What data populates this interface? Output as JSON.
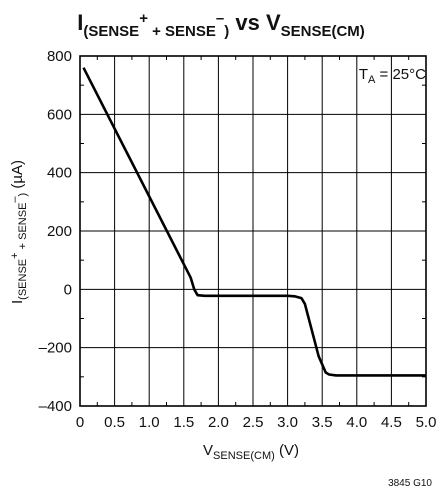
{
  "chart_data": {
    "type": "line",
    "title": {
      "main": "I",
      "sub1": "(SENSE",
      "sup1": "+",
      "sub2": " + SENSE",
      "sup2": "–",
      "sub3": ")",
      "vs": " vs V",
      "sub4": "SENSE(CM)"
    },
    "xlabel": {
      "main": "V",
      "sub": "SENSE(CM)",
      "unit": " (V)"
    },
    "ylabel": {
      "main": "I",
      "sub1": "(SENSE",
      "sup1": "+",
      "sub2": " + SENSE",
      "sup2": "–",
      "sub3": ")",
      "unit": " (µA)"
    },
    "xlim": [
      0,
      5.0
    ],
    "ylim": [
      -400,
      800
    ],
    "xticks": [
      {
        "v": 0,
        "label": "0"
      },
      {
        "v": 0.5,
        "label": "0.5"
      },
      {
        "v": 1.0,
        "label": "1.0"
      },
      {
        "v": 1.5,
        "label": "1.5"
      },
      {
        "v": 2.0,
        "label": "2.0"
      },
      {
        "v": 2.5,
        "label": "2.5"
      },
      {
        "v": 3.0,
        "label": "3.0"
      },
      {
        "v": 3.5,
        "label": "3.5"
      },
      {
        "v": 4.0,
        "label": "4.0"
      },
      {
        "v": 4.5,
        "label": "4.5"
      },
      {
        "v": 5.0,
        "label": "5.0"
      }
    ],
    "yticks": [
      {
        "v": 800,
        "label": "800"
      },
      {
        "v": 600,
        "label": "600"
      },
      {
        "v": 400,
        "label": "400"
      },
      {
        "v": 200,
        "label": "200"
      },
      {
        "v": 0,
        "label": "0"
      },
      {
        "v": -200,
        "label": "–200"
      },
      {
        "v": -400,
        "label": "–400"
      }
    ],
    "minor_xticks": [
      0.25,
      0.75,
      1.25,
      1.75,
      2.25,
      2.75,
      3.25,
      3.75,
      4.25,
      4.75
    ],
    "minor_yticks": [
      700,
      500,
      300,
      100,
      -100,
      -300
    ],
    "grid": true,
    "annotation": {
      "main": "T",
      "sub": "A",
      "rest": " = 25°C",
      "position": "top-right"
    },
    "figure_id": "3845 G10",
    "series": [
      {
        "color": "#000000",
        "x": [
          0.05,
          1.6,
          1.65,
          1.7,
          1.8,
          2.5,
          3.0,
          3.1,
          3.2,
          3.25,
          3.45,
          3.55,
          3.6,
          3.7,
          5.0
        ],
        "y": [
          760,
          40,
          0,
          -20,
          -22,
          -22,
          -22,
          -24,
          -30,
          -50,
          -230,
          -285,
          -292,
          -295,
          -295
        ]
      }
    ]
  }
}
